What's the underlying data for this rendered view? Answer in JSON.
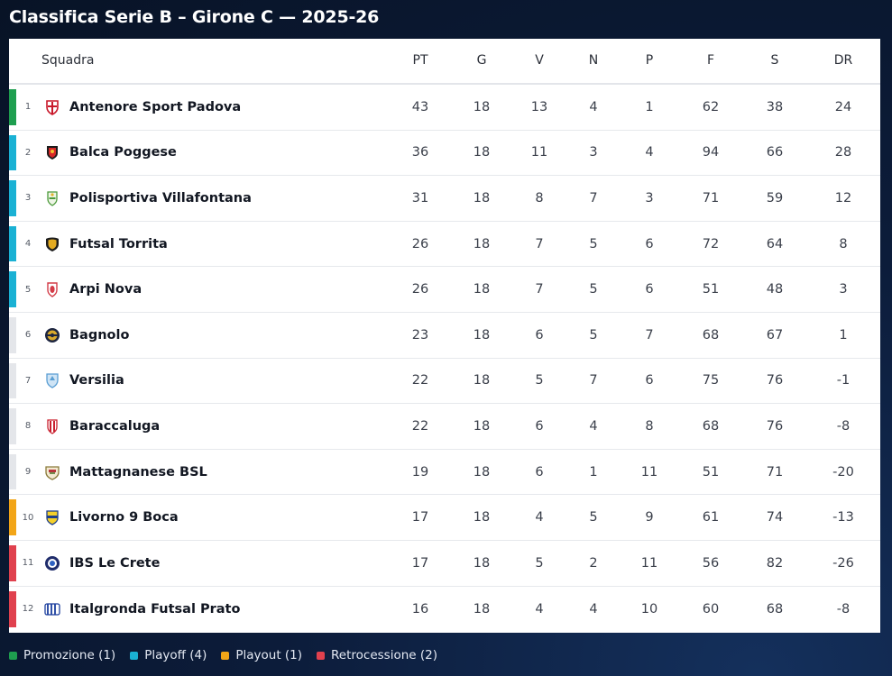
{
  "title": "Classifica Serie B – Girone C — 2025-26",
  "colors": {
    "promozione": "#1e9e4f",
    "playoff": "#1ab1d4",
    "playout": "#f2a517",
    "retrocessione": "#e0414e",
    "neutral": "#e4e6ea"
  },
  "columns": {
    "team": "Squadra",
    "pt": "PT",
    "g": "G",
    "v": "V",
    "n": "N",
    "p": "P",
    "f": "F",
    "s": "S",
    "dr": "DR"
  },
  "rows": [
    {
      "pos": "1",
      "team": "Antenore Sport Padova",
      "pt": "43",
      "g": "18",
      "v": "13",
      "n": "4",
      "p": "1",
      "f": "62",
      "s": "38",
      "dr": "24",
      "zone": "promozione",
      "badge": "red-cross-shield-icon"
    },
    {
      "pos": "2",
      "team": "Balca Poggese",
      "pt": "36",
      "g": "18",
      "v": "11",
      "n": "3",
      "p": "4",
      "f": "94",
      "s": "66",
      "dr": "28",
      "zone": "playoff",
      "badge": "red-black-crest-icon"
    },
    {
      "pos": "3",
      "team": "Polisportiva Villafontana",
      "pt": "31",
      "g": "18",
      "v": "8",
      "n": "7",
      "p": "3",
      "f": "71",
      "s": "59",
      "dr": "12",
      "zone": "playoff",
      "badge": "green-crest-icon"
    },
    {
      "pos": "4",
      "team": "Futsal Torrita",
      "pt": "26",
      "g": "18",
      "v": "7",
      "n": "5",
      "p": "6",
      "f": "72",
      "s": "64",
      "dr": "8",
      "zone": "playoff",
      "badge": "gold-black-crest-icon"
    },
    {
      "pos": "5",
      "team": "Arpi Nova",
      "pt": "26",
      "g": "18",
      "v": "7",
      "n": "5",
      "p": "6",
      "f": "51",
      "s": "48",
      "dr": "3",
      "zone": "playoff",
      "badge": "red-white-crest-icon"
    },
    {
      "pos": "6",
      "team": "Bagnolo",
      "pt": "23",
      "g": "18",
      "v": "6",
      "n": "5",
      "p": "7",
      "f": "68",
      "s": "67",
      "dr": "1",
      "zone": "neutral",
      "badge": "gold-navy-crest-icon"
    },
    {
      "pos": "7",
      "team": "Versilia",
      "pt": "22",
      "g": "18",
      "v": "5",
      "n": "7",
      "p": "6",
      "f": "75",
      "s": "76",
      "dr": "-1",
      "zone": "neutral",
      "badge": "light-blue-crest-icon"
    },
    {
      "pos": "8",
      "team": "Baraccaluga",
      "pt": "22",
      "g": "18",
      "v": "6",
      "n": "4",
      "p": "8",
      "f": "68",
      "s": "76",
      "dr": "-8",
      "zone": "neutral",
      "badge": "red-striped-crest-icon"
    },
    {
      "pos": "9",
      "team": "Mattagnanese BSL",
      "pt": "19",
      "g": "18",
      "v": "6",
      "n": "1",
      "p": "11",
      "f": "51",
      "s": "71",
      "dr": "-20",
      "zone": "neutral",
      "badge": "olive-red-crest-icon"
    },
    {
      "pos": "10",
      "team": "Livorno 9 Boca",
      "pt": "17",
      "g": "18",
      "v": "4",
      "n": "5",
      "p": "9",
      "f": "61",
      "s": "74",
      "dr": "-13",
      "zone": "playout",
      "badge": "yellow-blue-crest-icon"
    },
    {
      "pos": "11",
      "team": "IBS Le Crete",
      "pt": "17",
      "g": "18",
      "v": "5",
      "n": "2",
      "p": "11",
      "f": "56",
      "s": "82",
      "dr": "-26",
      "zone": "retrocessione",
      "badge": "navy-round-crest-icon"
    },
    {
      "pos": "12",
      "team": "Italgronda Futsal Prato",
      "pt": "16",
      "g": "18",
      "v": "4",
      "n": "4",
      "p": "10",
      "f": "60",
      "s": "68",
      "dr": "-8",
      "zone": "retrocessione",
      "badge": "blue-white-striped-crest-icon"
    }
  ],
  "legend": [
    {
      "label": "Promozione (1)",
      "zone": "promozione"
    },
    {
      "label": "Playoff (4)",
      "zone": "playoff"
    },
    {
      "label": "Playout (1)",
      "zone": "playout"
    },
    {
      "label": "Retrocessione (2)",
      "zone": "retrocessione"
    }
  ]
}
